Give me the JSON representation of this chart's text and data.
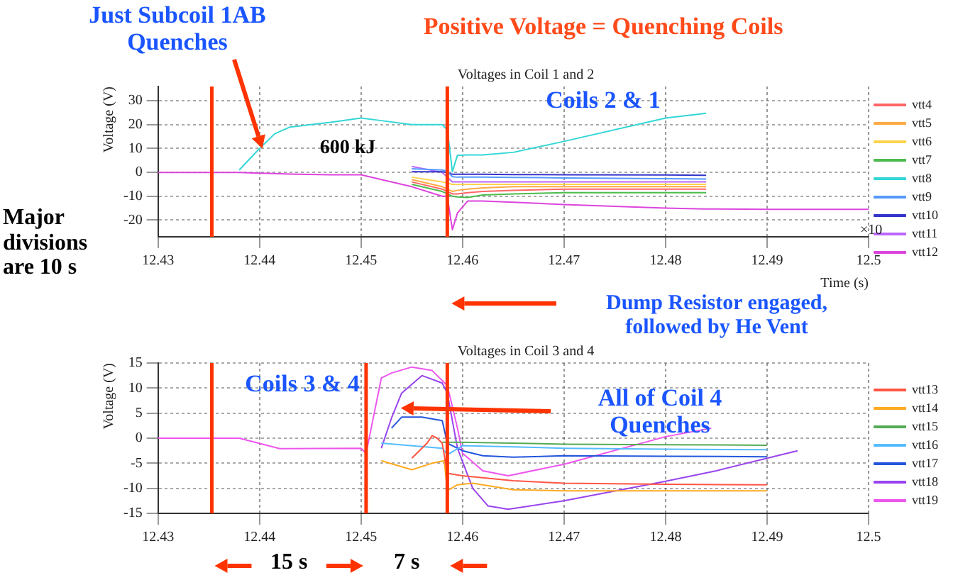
{
  "chart_data": [
    {
      "type": "line",
      "title": "Voltages in Coil 1 and 2",
      "xlabel": "Time (s)",
      "ylabel": "Voltage (V)",
      "annotations": [
        "Just Subcoil 1AB Quenches",
        "Positive Voltage = Quenching Coils",
        "600 kJ",
        "Coils 2 & 1",
        "Major divisions are 10 s",
        "Dump Resistor engaged, followed by He Vent",
        "×10"
      ],
      "x": [
        12.43,
        12.436,
        12.438,
        12.44,
        12.4415,
        12.443,
        12.447,
        12.45,
        12.452,
        12.455,
        12.458,
        12.4585,
        12.459,
        12.4595,
        12.4605,
        12.462,
        12.465,
        12.47,
        12.48,
        12.484,
        12.49,
        12.5
      ],
      "series": [
        {
          "name": "vtt4",
          "color": "#ff6666",
          "values": [
            null,
            null,
            null,
            null,
            null,
            null,
            null,
            null,
            null,
            -4,
            -7,
            -8,
            -9,
            -9,
            -8.5,
            -8,
            -7.5,
            -7,
            -7,
            -7,
            null,
            null
          ]
        },
        {
          "name": "vtt5",
          "color": "#ffaa44",
          "values": [
            null,
            null,
            null,
            null,
            null,
            null,
            null,
            null,
            null,
            -3,
            -6,
            -7,
            -8,
            -7.5,
            -7,
            -6.5,
            -6,
            -6,
            -6,
            -6,
            null,
            null
          ]
        },
        {
          "name": "vtt6",
          "color": "#ffd24d",
          "values": [
            null,
            null,
            null,
            null,
            null,
            null,
            null,
            null,
            null,
            -2,
            -4,
            -4.5,
            -5,
            -5,
            -5,
            -5,
            -5,
            -5,
            -5,
            -5,
            null,
            null
          ]
        },
        {
          "name": "vtt7",
          "color": "#4dbb4d",
          "values": [
            null,
            null,
            null,
            null,
            null,
            null,
            null,
            null,
            null,
            -5,
            -8,
            -9,
            -10,
            -10.3,
            -10.5,
            -9.5,
            -9,
            -8.5,
            -8.5,
            -8.5,
            null,
            null
          ]
        },
        {
          "name": "vtt8",
          "color": "#33d6d6",
          "values": [
            null,
            null,
            1,
            10,
            16.2,
            19,
            21,
            22.8,
            21.7,
            20,
            20,
            17.8,
            0.3,
            7.2,
            7.3,
            7.3,
            8.4,
            13,
            22.8,
            24.8,
            null,
            null
          ]
        },
        {
          "name": "vtt9",
          "color": "#5599ff",
          "values": [
            null,
            null,
            null,
            null,
            null,
            null,
            null,
            null,
            null,
            1.5,
            1,
            0.5,
            -1.8,
            -2,
            -2,
            -2,
            -2.1,
            -2.3,
            -2.6,
            -2.8,
            null,
            null
          ]
        },
        {
          "name": "vtt10",
          "color": "#3333cc",
          "values": [
            null,
            null,
            null,
            null,
            null,
            null,
            null,
            null,
            null,
            0.3,
            0.3,
            0,
            -0.8,
            -0.8,
            -0.8,
            -0.8,
            -0.9,
            -1,
            -1.1,
            -1.2,
            null,
            null
          ]
        },
        {
          "name": "vtt11",
          "color": "#bb66ff",
          "values": [
            null,
            null,
            null,
            null,
            null,
            null,
            null,
            null,
            null,
            2.5,
            0,
            -2,
            -4,
            -4,
            -4,
            -4,
            -4,
            -4,
            -4,
            -4,
            null,
            null
          ]
        },
        {
          "name": "vtt12",
          "color": "#dd44dd",
          "values": [
            0,
            0,
            0,
            -0.3,
            -0.5,
            -0.7,
            -1,
            -1,
            -3,
            -6,
            -10,
            -10,
            -24,
            -17,
            -12,
            -12,
            -12.5,
            -13.5,
            -15,
            -15.3,
            -15.5,
            -15.5
          ]
        }
      ],
      "xlim": [
        12.43,
        12.5
      ],
      "xticks": [
        12.43,
        12.44,
        12.45,
        12.46,
        12.47,
        12.48,
        12.49,
        12.5
      ],
      "ylim": [
        -27,
        36
      ],
      "yticks": [
        -20,
        -10,
        0,
        10,
        20,
        30
      ],
      "grid": true,
      "legend": "right",
      "ref_lines": [
        {
          "axis": "x",
          "value": 12.4353,
          "color": "#ff3300"
        },
        {
          "axis": "x",
          "value": 12.4585,
          "color": "#ff3300"
        }
      ]
    },
    {
      "type": "line",
      "title": "Voltages in Coil 3 and 4",
      "ylabel": "Voltage (V)",
      "annotations": [
        "Coils 3 & 4",
        "All of Coil 4 Quenches",
        "15 s",
        "7 s"
      ],
      "series": [
        {
          "name": "vtt13",
          "color": "#ff5544",
          "x": [
            12.455,
            12.4565,
            12.457,
            12.4575,
            12.458,
            12.4585,
            12.46,
            12.465,
            12.47,
            12.48,
            12.49
          ],
          "values": [
            -4,
            -1,
            0.5,
            0,
            -1,
            -7,
            -7.5,
            -8.5,
            -9,
            -9.2,
            -9.3
          ]
        },
        {
          "name": "vtt14",
          "color": "#ffaa22",
          "x": [
            12.452,
            12.455,
            12.457,
            12.4582,
            12.4585,
            12.4595,
            12.461,
            12.465,
            12.47,
            12.48,
            12.49
          ],
          "values": [
            -4.5,
            -6.3,
            -5,
            -4.5,
            -10.5,
            -9.3,
            -9,
            -10.3,
            -10.5,
            -10.5,
            -10.5
          ]
        },
        {
          "name": "vtt15",
          "color": "#55aa55",
          "x": [
            12.458,
            12.46,
            12.47,
            12.48,
            12.49
          ],
          "values": [
            -0.8,
            -0.8,
            -1.2,
            -1.3,
            -1.4
          ]
        },
        {
          "name": "vtt16",
          "color": "#55bbff",
          "x": [
            12.452,
            12.458,
            12.4585,
            12.46,
            12.47,
            12.48,
            12.49
          ],
          "values": [
            -1,
            -2,
            -3.3,
            -1.5,
            -2,
            -2.2,
            -2.3
          ]
        },
        {
          "name": "vtt17",
          "color": "#2255dd",
          "x": [
            12.453,
            12.454,
            12.456,
            12.458,
            12.4585,
            12.46,
            12.462,
            12.465,
            12.47,
            12.48,
            12.49
          ],
          "values": [
            2,
            4.2,
            4.2,
            3.5,
            -1,
            -2.5,
            -3.5,
            -3.8,
            -3.5,
            -3.6,
            -3.7
          ]
        },
        {
          "name": "vtt18",
          "color": "#9944ee",
          "x": [
            12.452,
            12.453,
            12.454,
            12.456,
            12.458,
            12.4585,
            12.4595,
            12.461,
            12.4625,
            12.4645,
            12.47,
            12.48,
            12.485,
            12.49,
            12.493
          ],
          "values": [
            -2,
            4,
            9,
            12.5,
            11,
            9,
            -2,
            -10,
            -13.5,
            -14.2,
            -12.5,
            -8.6,
            -6.5,
            -4,
            -2.5
          ]
        },
        {
          "name": "vtt19",
          "color": "#ee55ee",
          "x": [
            12.43,
            12.438,
            12.442,
            12.45,
            12.4505,
            12.451,
            12.452,
            12.453,
            12.455,
            12.457,
            12.4585,
            12.4595,
            12.46,
            12.462,
            12.4645,
            12.47,
            12.48,
            12.4845
          ],
          "values": [
            0,
            0,
            -2.1,
            -2,
            -3,
            2,
            12,
            13,
            14.2,
            13.5,
            10.5,
            2,
            -3,
            -6.5,
            -7.5,
            -5.2,
            0.3,
            2
          ]
        }
      ],
      "xlim": [
        12.43,
        12.5
      ],
      "xticks": [
        12.43,
        12.44,
        12.45,
        12.46,
        12.47,
        12.48,
        12.49,
        12.5
      ],
      "ylim": [
        -15,
        15
      ],
      "yticks": [
        -15,
        -10,
        -5,
        0,
        5,
        10,
        15
      ],
      "grid": true,
      "legend": "right",
      "ref_lines": [
        {
          "axis": "x",
          "value": 12.4353,
          "color": "#ff3300"
        },
        {
          "axis": "x",
          "value": 12.4505,
          "color": "#ff3300"
        },
        {
          "axis": "x",
          "value": 12.4585,
          "color": "#ff3300"
        }
      ]
    }
  ]
}
